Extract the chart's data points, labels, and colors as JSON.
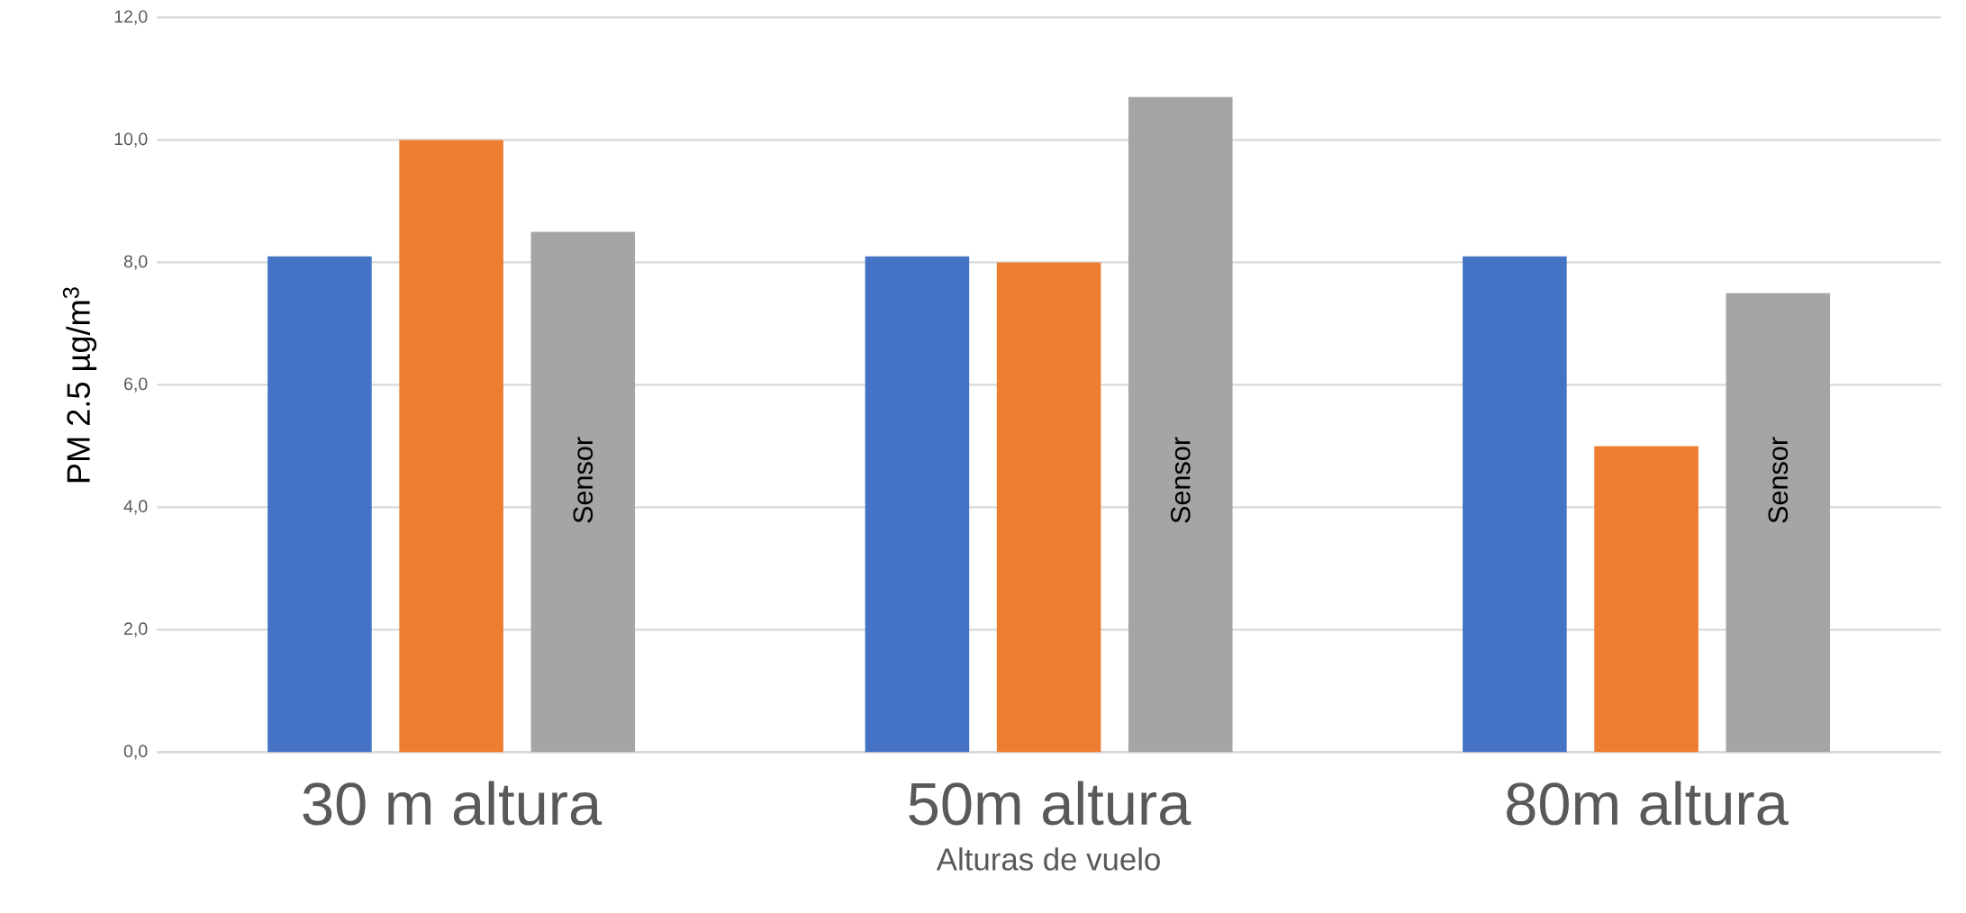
{
  "chart_data": {
    "type": "bar",
    "xlabel": "Alturas de vuelo",
    "ylabel": "PM 2.5 µg/m$^{3}$",
    "categories": [
      "30 m altura",
      "50m  altura",
      "80m altura"
    ],
    "series": [
      {
        "color": "#4472c4",
        "values": [
          8.1,
          8.1,
          8.1
        ]
      },
      {
        "color": "#ed7d31",
        "values": [
          10.0,
          8.0,
          5.0
        ]
      },
      {
        "color": "#a5a5a5",
        "values": [
          8.5,
          10.7,
          7.5
        ]
      }
    ],
    "annotations": [
      "Sensor",
      "Sensor",
      "Sensor"
    ],
    "ylim": [
      0,
      12
    ],
    "yticks": [
      {
        "value": 0,
        "label": "0,0"
      },
      {
        "value": 2,
        "label": "2,0"
      },
      {
        "value": 4,
        "label": "4,0"
      },
      {
        "value": 6,
        "label": "6,0"
      },
      {
        "value": 8,
        "label": "8,0"
      },
      {
        "value": 10,
        "label": "10,0"
      },
      {
        "value": 12,
        "label": "12,0"
      }
    ],
    "grid": "y"
  }
}
